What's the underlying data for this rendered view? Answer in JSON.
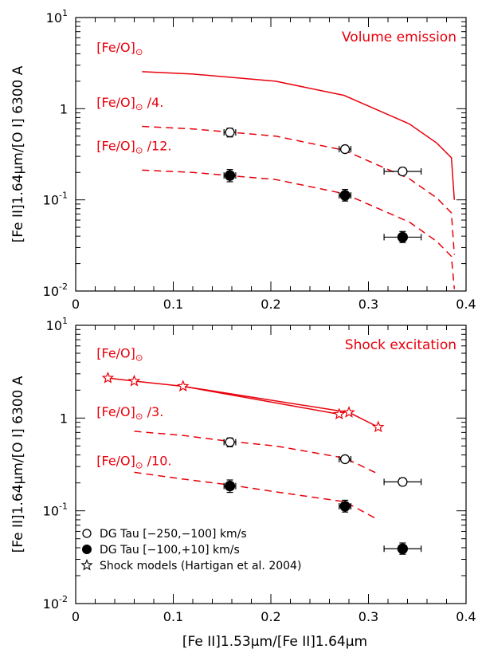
{
  "colors": {
    "model": "#e8000b",
    "axes": "#000000",
    "data": "#000000"
  },
  "x_axis_label": "[Fe II]1.53μm/[Fe II]1.64μm",
  "y_axis_label": "[Fe II]1.64μm/[O I] 6300 A",
  "chart_data": [
    {
      "type": "line",
      "title": "Volume emission",
      "xlabel": "",
      "ylabel": "[Fe II]1.64μm/[O I] 6300 A",
      "xlim": [
        0,
        0.4
      ],
      "ylim": [
        0.01,
        10
      ],
      "yscale": "log",
      "x_ticks": [
        "0",
        "0.1",
        "0.2",
        "0.3",
        "0.4"
      ],
      "y_ticks": [
        {
          "base": "10",
          "exp": "-2",
          "v": 0.01
        },
        {
          "base": "10",
          "exp": "-1",
          "v": 0.1
        },
        {
          "base": "1",
          "exp": "",
          "v": 1
        },
        {
          "base": "10",
          "exp": "1",
          "v": 10
        }
      ],
      "series": [
        {
          "name": "[Fe/O]⊙",
          "style": "solid",
          "label": "[Fe/O]⊙",
          "label_pos": [
            0.01,
            4.2
          ],
          "x": [
            0.068,
            0.12,
            0.205,
            0.275,
            0.342,
            0.37,
            0.385,
            0.388
          ],
          "y": [
            2.55,
            2.4,
            2.0,
            1.4,
            0.68,
            0.42,
            0.29,
            0.1
          ]
        },
        {
          "name": "[Fe/O]⊙ /4.",
          "style": "dashed",
          "label": "[Fe/O]⊙ /4.",
          "label_pos": [
            0.01,
            1.05
          ],
          "x": [
            0.068,
            0.12,
            0.205,
            0.275,
            0.342,
            0.37,
            0.385,
            0.388
          ],
          "y": [
            0.64,
            0.6,
            0.5,
            0.35,
            0.17,
            0.105,
            0.072,
            0.025
          ]
        },
        {
          "name": "[Fe/O]⊙ /12.",
          "style": "dashed",
          "label": "[Fe/O]⊙ /12.",
          "label_pos": [
            0.01,
            0.35
          ],
          "x": [
            0.068,
            0.12,
            0.205,
            0.275,
            0.342,
            0.37,
            0.385,
            0.388
          ],
          "y": [
            0.212,
            0.2,
            0.167,
            0.117,
            0.057,
            0.035,
            0.024,
            0.0105
          ]
        }
      ],
      "points": [
        {
          "set": "open",
          "x": 0.158,
          "y": 0.55,
          "xerr": 0.006,
          "yerr": [
            0.49,
            0.61
          ]
        },
        {
          "set": "open",
          "x": 0.276,
          "y": 0.36,
          "xerr": 0.006,
          "yerr": [
            0.33,
            0.39
          ]
        },
        {
          "set": "open",
          "x": 0.335,
          "y": 0.205,
          "xerr": 0.019,
          "yerr": [
            0.188,
            0.225
          ]
        },
        {
          "set": "filled",
          "x": 0.158,
          "y": 0.185,
          "xerr": 0.006,
          "yerr": [
            0.158,
            0.215
          ]
        },
        {
          "set": "filled",
          "x": 0.276,
          "y": 0.112,
          "xerr": 0.006,
          "yerr": [
            0.097,
            0.13
          ]
        },
        {
          "set": "filled",
          "x": 0.335,
          "y": 0.039,
          "xerr": 0.019,
          "yerr": [
            0.034,
            0.045
          ]
        }
      ]
    },
    {
      "type": "line",
      "title": "Shock excitation",
      "xlabel": "[Fe II]1.53μm/[Fe II]1.64μm",
      "ylabel": "[Fe II]1.64μm/[O I] 6300 A",
      "xlim": [
        0,
        0.4
      ],
      "ylim": [
        0.01,
        10
      ],
      "yscale": "log",
      "x_ticks": [
        "0",
        "0.1",
        "0.2",
        "0.3",
        "0.4"
      ],
      "y_ticks": [
        {
          "base": "10",
          "exp": "-2",
          "v": 0.01
        },
        {
          "base": "10",
          "exp": "-1",
          "v": 0.1
        },
        {
          "base": "1",
          "exp": "",
          "v": 1
        },
        {
          "base": "10",
          "exp": "1",
          "v": 10
        }
      ],
      "series": [
        {
          "name": "[Fe/O]⊙",
          "style": "solid",
          "label": "[Fe/O]⊙",
          "label_pos": [
            0.01,
            4.5
          ],
          "x": [
            0.033,
            0.06,
            0.11,
            0.28,
            0.31
          ],
          "y": [
            2.7,
            2.5,
            2.2,
            1.15,
            0.8
          ]
        },
        {
          "name": "[Fe/O]⊙ (branch)",
          "style": "solid",
          "label": "",
          "label_pos": null,
          "x": [
            0.11,
            0.27
          ],
          "y": [
            2.2,
            1.1
          ]
        },
        {
          "name": "[Fe/O]⊙ /3.",
          "style": "dashed",
          "label": "[Fe/O]⊙ /3.",
          "label_pos": [
            0.01,
            1.05
          ],
          "x": [
            0.06,
            0.11,
            0.158,
            0.205,
            0.276,
            0.31
          ],
          "y": [
            0.72,
            0.65,
            0.56,
            0.5,
            0.37,
            0.25
          ]
        },
        {
          "name": "[Fe/O]⊙ /10.",
          "style": "dashed",
          "label": "[Fe/O]⊙ /10.",
          "label_pos": [
            0.01,
            0.31
          ],
          "x": [
            0.06,
            0.11,
            0.158,
            0.205,
            0.276,
            0.31
          ],
          "y": [
            0.26,
            0.22,
            0.19,
            0.16,
            0.125,
            0.08
          ]
        }
      ],
      "stars": [
        {
          "x": 0.033,
          "y": 2.7
        },
        {
          "x": 0.06,
          "y": 2.5
        },
        {
          "x": 0.11,
          "y": 2.2
        },
        {
          "x": 0.27,
          "y": 1.1
        },
        {
          "x": 0.28,
          "y": 1.15
        },
        {
          "x": 0.31,
          "y": 0.8
        }
      ],
      "points": [
        {
          "set": "open",
          "x": 0.158,
          "y": 0.55,
          "xerr": 0.006,
          "yerr": [
            0.49,
            0.61
          ]
        },
        {
          "set": "open",
          "x": 0.276,
          "y": 0.36,
          "xerr": 0.006,
          "yerr": [
            0.33,
            0.39
          ]
        },
        {
          "set": "open",
          "x": 0.335,
          "y": 0.205,
          "xerr": 0.019,
          "yerr": [
            0.188,
            0.225
          ]
        },
        {
          "set": "filled",
          "x": 0.158,
          "y": 0.185,
          "xerr": 0.006,
          "yerr": [
            0.158,
            0.215
          ]
        },
        {
          "set": "filled",
          "x": 0.276,
          "y": 0.112,
          "xerr": 0.006,
          "yerr": [
            0.097,
            0.13
          ]
        },
        {
          "set": "filled",
          "x": 0.335,
          "y": 0.039,
          "xerr": 0.019,
          "yerr": [
            0.034,
            0.045
          ]
        }
      ],
      "legend": {
        "placement": "bottom-left",
        "entries": [
          {
            "marker": "open-circle",
            "label": "DG Tau [−250,−100] km/s"
          },
          {
            "marker": "filled-circle",
            "label": "DG Tau [−100,+10] km/s"
          },
          {
            "marker": "star",
            "label": "Shock models (Hartigan et al. 2004)"
          }
        ]
      }
    }
  ]
}
